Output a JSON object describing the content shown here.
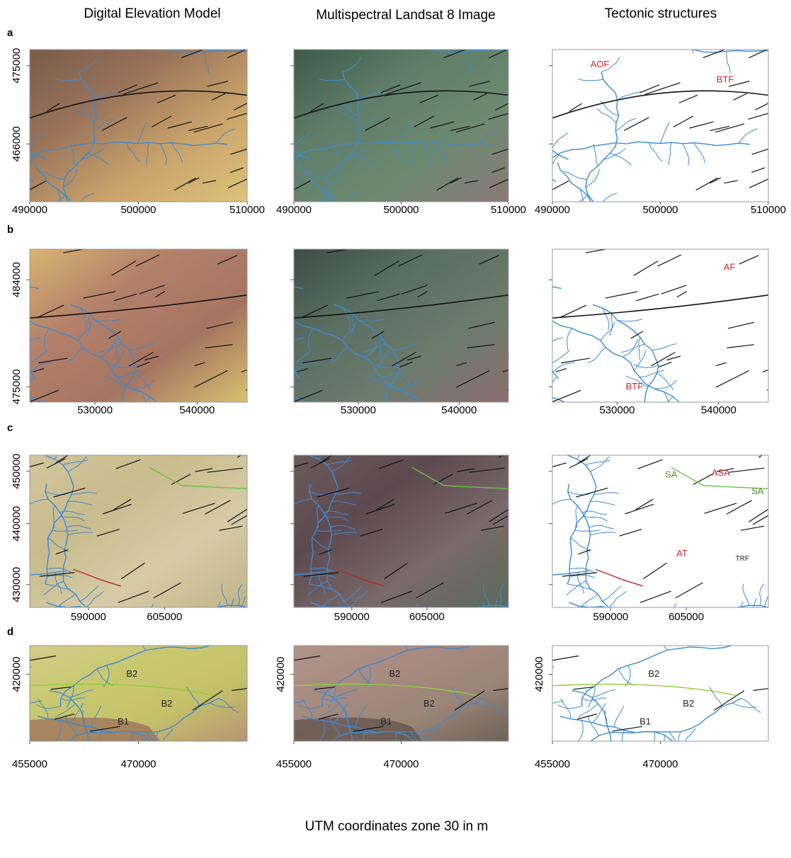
{
  "columns": [
    "Digital Elevation Model",
    "Multispectral Landsat 8 Image",
    "Tectonic structures"
  ],
  "rows": [
    {
      "label": "a",
      "xticks": [
        490000,
        500000,
        510000
      ],
      "yticks": [
        475000,
        466000
      ],
      "annotations": [
        "AOF",
        "BTF"
      ]
    },
    {
      "label": "b",
      "xticks": [
        530000,
        540000
      ],
      "yticks": [
        484000,
        475000
      ],
      "annotations": [
        "AF",
        "BTF"
      ]
    },
    {
      "label": "c",
      "xticks": [
        590000,
        605000
      ],
      "yticks": [
        450000,
        440000,
        430000
      ],
      "annotations": [
        "SA",
        "ASA",
        "SA",
        "AT",
        "TRF"
      ]
    },
    {
      "label": "d",
      "xticks": [
        455000,
        470000
      ],
      "yticks": [
        420000
      ],
      "annotations": [
        "B2",
        "B2",
        "B1"
      ]
    }
  ],
  "footer": "UTM coordinates zone 30 in m"
}
